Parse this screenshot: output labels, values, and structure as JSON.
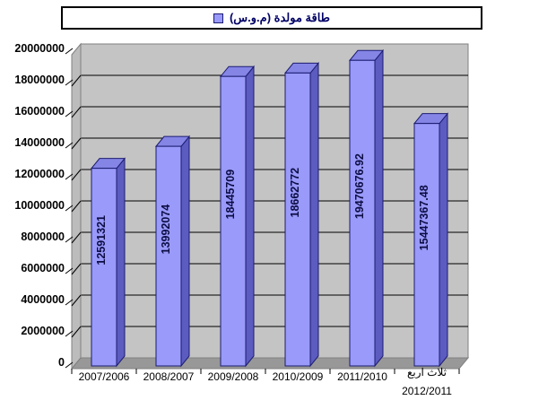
{
  "legend": {
    "label": "طاقة مولدة (م.و.س)"
  },
  "chart_data": {
    "type": "bar",
    "style": "3d-column",
    "title": "",
    "legend_label": "طاقة مولدة (م.و.س)",
    "legend_position": "top",
    "categories": [
      {
        "lines": [
          "2007/2006"
        ]
      },
      {
        "lines": [
          "2008/2007"
        ]
      },
      {
        "lines": [
          "2009/2008"
        ]
      },
      {
        "lines": [
          "2010/2009"
        ]
      },
      {
        "lines": [
          "2011/2010"
        ]
      },
      {
        "lines": [
          "ثلاث اربع",
          "2012/2011"
        ]
      }
    ],
    "values": [
      12591321,
      13992074,
      18445709,
      18662772,
      19470676.92,
      15447367.48
    ],
    "bar_labels": [
      "12591321",
      "13992074",
      "18445709",
      "18662772",
      "19470676.92",
      "15447367.48"
    ],
    "ylim": [
      0,
      20000000
    ],
    "y_tick_step": 2000000,
    "y_tick_labels": [
      "0",
      "2000000",
      "4000000",
      "6000000",
      "8000000",
      "10000000",
      "12000000",
      "14000000",
      "16000000",
      "18000000",
      "20000000"
    ],
    "xlabel": "",
    "ylabel": "",
    "grid": true,
    "colors": {
      "bar_front": "#999af9",
      "bar_side": "#5b5bc0",
      "bar_top": "#8585e6",
      "bar_outline": "#1c1c70",
      "back_wall": "#c4c4c4",
      "side_wall": "#bcbcbc",
      "floor": "#989898",
      "wall_edge": "#808080",
      "gridline": "#000000",
      "legend_text": "#000066",
      "bar_label_text": "#0d0d45",
      "axis_text": "#000000"
    }
  }
}
